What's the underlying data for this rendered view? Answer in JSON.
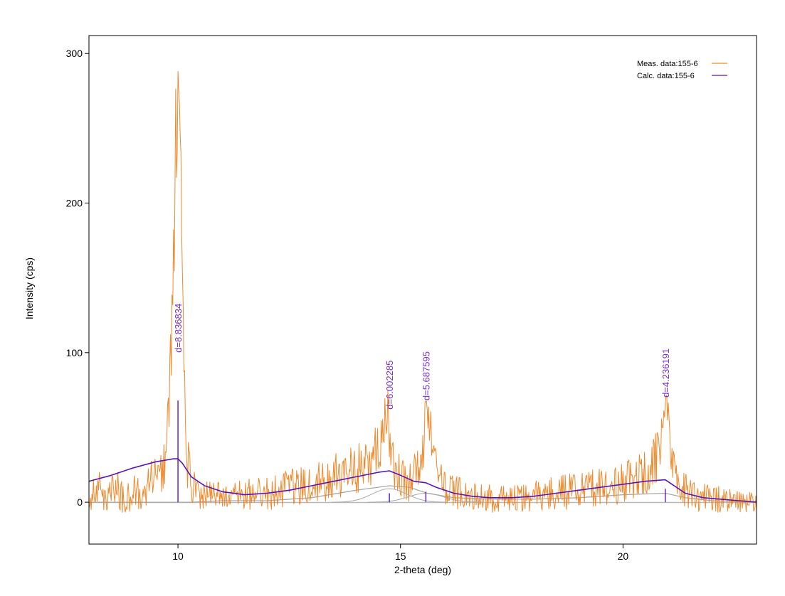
{
  "chart_data": {
    "type": "line",
    "xlabel": "2-theta (deg)",
    "ylabel": "Intensity (cps)",
    "xlim": [
      8,
      23
    ],
    "ylim": [
      -28,
      312
    ],
    "x_ticks": [
      10,
      15,
      20
    ],
    "y_ticks": [
      0,
      100,
      200,
      300
    ],
    "legend_position": "top-right",
    "grid": false,
    "colors": {
      "measured": "#ee8a2e",
      "calculated": "#5b14b5",
      "components": "#a8a8a8",
      "background": "#b8b8b8",
      "peak_label": "#7a2fc8"
    },
    "legend": [
      {
        "label": "Meas. data:155-6",
        "color": "#ee8a2e"
      },
      {
        "label": "Calc. data:155-6",
        "color": "#5b14b5"
      }
    ],
    "peaks": [
      {
        "two_theta": 10.0,
        "d_label": "d=8.836834",
        "stick_height": 68
      },
      {
        "two_theta": 14.75,
        "d_label": "d=6.002285",
        "stick_height": 6
      },
      {
        "two_theta": 15.57,
        "d_label": "d=5.687595",
        "stick_height": 7
      },
      {
        "two_theta": 20.95,
        "d_label": "d=4.236191",
        "stick_height": 9
      }
    ],
    "series": [
      {
        "name": "Calc. data:155-6",
        "x": [
          8.0,
          8.5,
          9.0,
          9.5,
          9.9,
          10.0,
          10.1,
          10.3,
          10.6,
          11.0,
          11.5,
          12.0,
          12.5,
          13.0,
          13.5,
          14.0,
          14.5,
          14.75,
          15.0,
          15.3,
          15.57,
          15.8,
          16.2,
          16.6,
          17.0,
          17.5,
          18.0,
          18.5,
          19.0,
          19.5,
          20.0,
          20.5,
          20.95,
          21.1,
          21.4,
          21.8,
          22.2,
          22.6,
          23.0
        ],
        "y": [
          14,
          18,
          23,
          27,
          29,
          29,
          26,
          17,
          11,
          7,
          5,
          6,
          8,
          11,
          14,
          17,
          20,
          21,
          18,
          14,
          13,
          10,
          6,
          4,
          3,
          3,
          4,
          6,
          8,
          10,
          12,
          14,
          15,
          12,
          6,
          3,
          2,
          1,
          0
        ]
      },
      {
        "name": "Meas. data:155-6",
        "x": [
          8.0,
          8.2,
          8.4,
          8.6,
          8.8,
          9.0,
          9.2,
          9.4,
          9.6,
          9.7,
          9.8,
          9.85,
          9.9,
          9.95,
          10.0,
          10.05,
          10.1,
          10.15,
          10.2,
          10.3,
          10.5,
          10.8,
          11.2,
          11.6,
          12.0,
          12.4,
          12.8,
          13.2,
          13.6,
          14.0,
          14.3,
          14.5,
          14.6,
          14.65,
          14.7,
          14.75,
          14.8,
          14.85,
          14.9,
          15.0,
          15.2,
          15.4,
          15.5,
          15.55,
          15.6,
          15.65,
          15.7,
          15.8,
          16.0,
          16.5,
          17.0,
          17.5,
          18.0,
          18.5,
          19.0,
          19.5,
          20.0,
          20.4,
          20.7,
          20.8,
          20.9,
          20.95,
          21.0,
          21.05,
          21.1,
          21.2,
          21.5,
          22.0,
          22.5,
          23.0
        ],
        "y": [
          5,
          10,
          2,
          12,
          0,
          8,
          3,
          15,
          18,
          28,
          60,
          110,
          160,
          240,
          283,
          230,
          140,
          70,
          30,
          12,
          5,
          4,
          3,
          5,
          6,
          9,
          12,
          14,
          18,
          22,
          27,
          34,
          45,
          60,
          63,
          50,
          32,
          22,
          20,
          16,
          14,
          20,
          35,
          55,
          68,
          62,
          42,
          20,
          10,
          4,
          3,
          2,
          4,
          6,
          8,
          10,
          13,
          18,
          26,
          38,
          52,
          57,
          52,
          40,
          25,
          12,
          5,
          2,
          1,
          0
        ]
      },
      {
        "name": "",
        "x": [
          8.0,
          9.0,
          9.5,
          10.0,
          10.3,
          11.0,
          12.0,
          13.0,
          14.0,
          14.75,
          15.2,
          15.6,
          16.2,
          17.0,
          18.0,
          19.0,
          20.0,
          20.95,
          21.4,
          22.0,
          23.0
        ],
        "y": [
          0,
          0,
          0,
          0,
          0,
          1,
          1,
          3,
          8,
          11,
          10,
          6,
          3,
          2,
          2,
          3,
          5,
          6,
          3,
          1,
          0
        ]
      },
      {
        "name": "",
        "x": [
          8.0,
          23.0
        ],
        "y": [
          -0.2,
          -0.2
        ]
      }
    ]
  }
}
